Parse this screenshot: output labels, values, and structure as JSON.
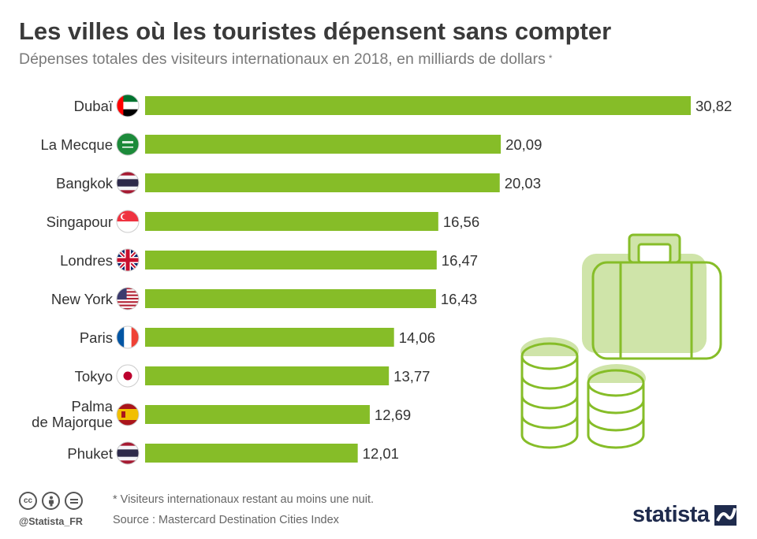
{
  "title": "Les villes où les touristes dépensent sans compter",
  "subtitle": "Dépenses totales des visiteurs internationaux en 2018, en milliards de dollars",
  "subtitle_marker": "*",
  "footnote": "* Visiteurs internationaux restant au moins une nuit.",
  "source": "Source : Mastercard Destination Cities Index",
  "handle": "@Statista_FR",
  "brand": "statista",
  "colors": {
    "bar": "#86bd28",
    "illustration": "#86bd28",
    "illustration_fill": "#cfe4a9",
    "title": "#3a3a3a"
  },
  "icons": [
    "cc-icon",
    "by-icon",
    "nd-icon",
    "suitcase-icon",
    "coin-stack-icon"
  ],
  "chart_data": {
    "type": "bar",
    "orientation": "horizontal",
    "categories": [
      "Dubaï",
      "La Mecque",
      "Bangkok",
      "Singapour",
      "Londres",
      "New York",
      "Paris",
      "Tokyo",
      "Palma\nde Majorque",
      "Phuket"
    ],
    "values": [
      30.82,
      20.09,
      20.03,
      16.56,
      16.47,
      16.43,
      14.06,
      13.77,
      12.69,
      12.01
    ],
    "value_labels": [
      "30,82",
      "20,09",
      "20,03",
      "16,56",
      "16,47",
      "16,43",
      "14,06",
      "13,77",
      "12,69",
      "12,01"
    ],
    "flags": [
      "uae",
      "saudi",
      "thailand",
      "singapore",
      "uk",
      "usa",
      "france",
      "japan",
      "spain",
      "thailand"
    ],
    "xlim": [
      0,
      30.82
    ],
    "grid": false,
    "legend": "none"
  }
}
